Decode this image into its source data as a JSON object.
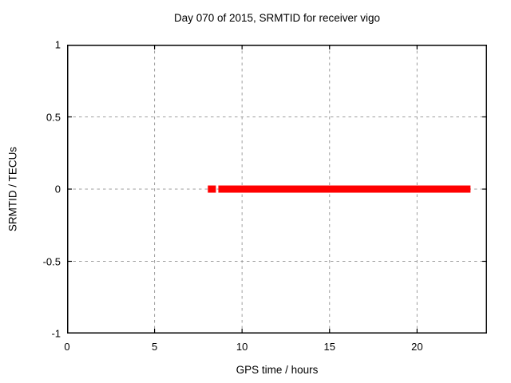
{
  "chart_data": {
    "type": "scatter",
    "title": "Day 070 of 2015, SRMTID for receiver vigo",
    "xlabel": "GPS time / hours",
    "ylabel": "SRMTID / TECUs",
    "xlim": [
      0,
      24
    ],
    "ylim": [
      -1,
      1
    ],
    "xticks": [
      0,
      5,
      10,
      15,
      20
    ],
    "xtick_labels": [
      "0",
      "5",
      "10",
      "15",
      "20"
    ],
    "yticks": [
      -1,
      -0.5,
      0,
      0.5,
      1
    ],
    "ytick_labels": [
      "-1",
      "-0.5",
      "0",
      "0.5",
      "1"
    ],
    "grid": true,
    "legend": "none",
    "series": [
      {
        "name": "SRMTID",
        "marker": "filled-square",
        "marker_size_px": 9,
        "y": 0,
        "segments": [
          {
            "x_start": 8.25,
            "x_end": 8.3
          },
          {
            "x_start": 8.85,
            "x_end": 22.85
          }
        ]
      }
    ]
  },
  "colors": {
    "background": "#ffffff",
    "text": "#000000",
    "border": "#000000",
    "grid": "#9e9e9e",
    "series": "#ff0000"
  }
}
